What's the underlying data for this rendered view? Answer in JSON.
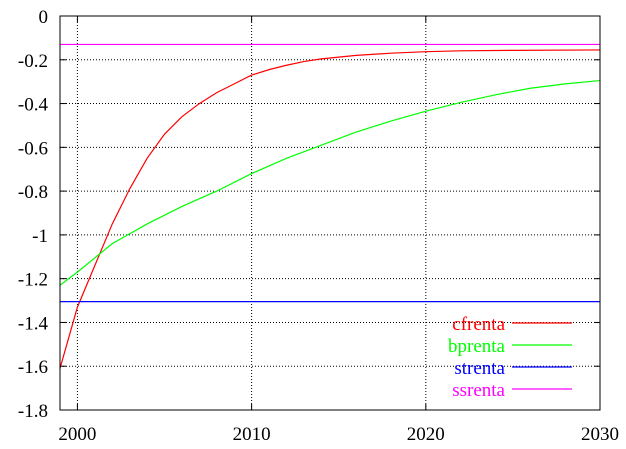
{
  "chart_data": {
    "type": "line",
    "title": "",
    "xlabel": "",
    "ylabel": "",
    "xlim": [
      1999,
      2030
    ],
    "ylim": [
      -1.8,
      0
    ],
    "x_ticks": [
      2000,
      2010,
      2020,
      2030
    ],
    "y_ticks": [
      0,
      -0.2,
      -0.4,
      -0.6,
      -0.8,
      -1,
      -1.2,
      -1.4,
      -1.6,
      -1.8
    ],
    "x_tick_labels": [
      "2000",
      "2010",
      "2020",
      "2030"
    ],
    "y_tick_labels": [
      "0",
      "-0.2",
      "-0.4",
      "-0.6",
      "-0.8",
      "-1",
      "-1.2",
      "-1.4",
      "-1.6",
      "-1.8"
    ],
    "grid": true,
    "legend_position": "bottom-right",
    "series": [
      {
        "name": "cfrenta",
        "color": "#ff0000",
        "x": [
          1999,
          2000,
          2001,
          2002,
          2003,
          2004,
          2005,
          2006,
          2007,
          2008,
          2009,
          2010,
          2011,
          2012,
          2013,
          2014,
          2016,
          2018,
          2020,
          2022,
          2025,
          2030
        ],
        "y": [
          -1.61,
          -1.33,
          -1.14,
          -0.95,
          -0.79,
          -0.65,
          -0.54,
          -0.46,
          -0.4,
          -0.35,
          -0.31,
          -0.27,
          -0.245,
          -0.225,
          -0.208,
          -0.196,
          -0.18,
          -0.17,
          -0.163,
          -0.159,
          -0.157,
          -0.155
        ]
      },
      {
        "name": "bprenta",
        "color": "#00ff00",
        "x": [
          1999,
          2000,
          2002,
          2004,
          2006,
          2008,
          2010,
          2012,
          2014,
          2016,
          2018,
          2020,
          2022,
          2024,
          2026,
          2028,
          2030
        ],
        "y": [
          -1.23,
          -1.17,
          -1.04,
          -0.95,
          -0.87,
          -0.8,
          -0.72,
          -0.65,
          -0.59,
          -0.53,
          -0.48,
          -0.435,
          -0.395,
          -0.36,
          -0.33,
          -0.31,
          -0.295
        ]
      },
      {
        "name": "strenta",
        "color": "#0000ff",
        "x": [
          1999,
          2030
        ],
        "y": [
          -1.305,
          -1.305
        ]
      },
      {
        "name": "ssrenta",
        "color": "#ff00ff",
        "x": [
          1999,
          2030
        ],
        "y": [
          -0.13,
          -0.13
        ]
      }
    ]
  }
}
